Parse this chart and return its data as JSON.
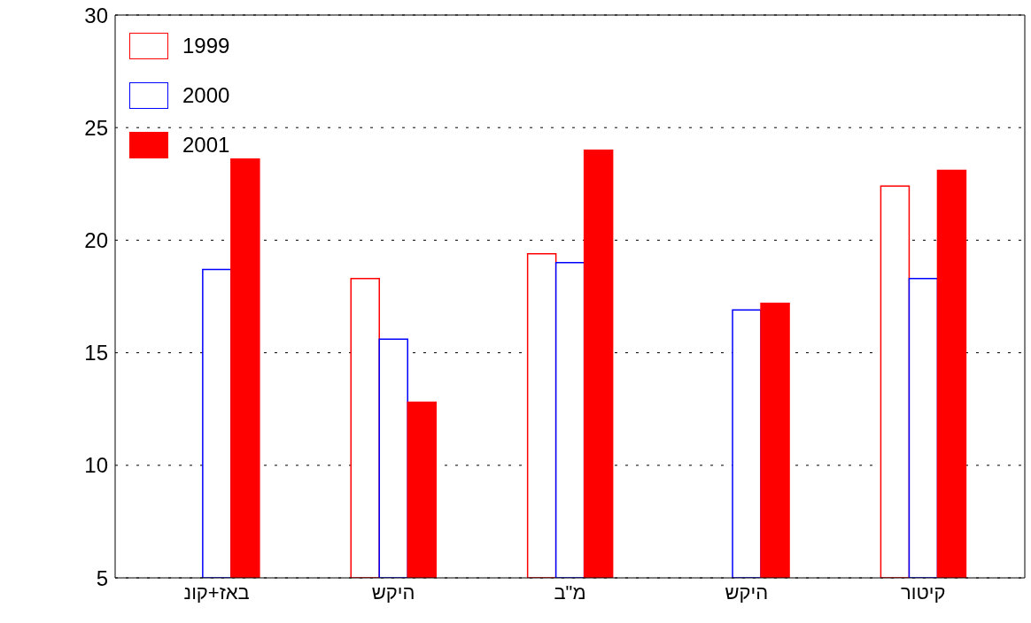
{
  "chart_data": {
    "type": "bar",
    "categories": [
      "באז+קונ",
      "היקש",
      "מ\"ב",
      "היקש",
      "קיטור"
    ],
    "series": [
      {
        "name": "1999",
        "color": "#ff0000",
        "values": [
          null,
          18.3,
          19.4,
          null,
          22.4
        ]
      },
      {
        "name": "2000",
        "color": "#0000ff",
        "values": [
          18.7,
          15.6,
          19.0,
          16.9,
          18.3
        ]
      },
      {
        "name": "2001",
        "color": "#ff0000",
        "values": [
          23.6,
          12.8,
          24.0,
          17.2,
          23.1
        ]
      }
    ],
    "ylim": [
      5,
      30
    ],
    "yticks": [
      5,
      10,
      15,
      20,
      25,
      30
    ],
    "grid": "y",
    "legend": "top left"
  }
}
